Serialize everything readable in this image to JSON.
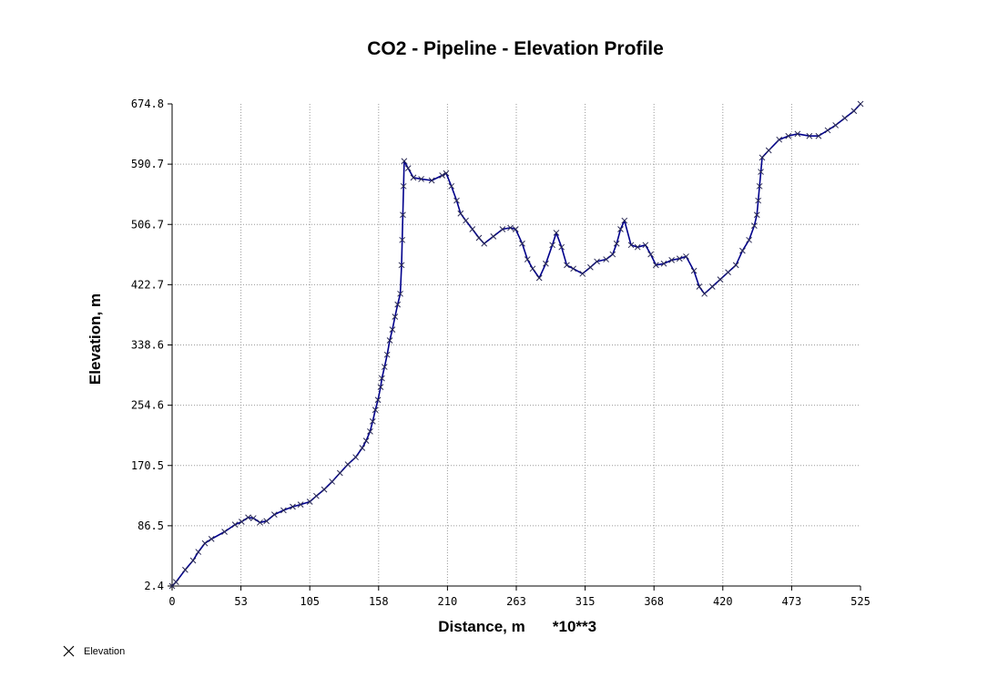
{
  "chart_data": {
    "type": "line",
    "title": "CO2 - Pipeline - Elevation Profile",
    "xlabel": "Distance, m",
    "x_multiplier": "*10**3",
    "ylabel": "Elevation, m",
    "xlim": [
      0,
      525
    ],
    "ylim": [
      2.4,
      674.8
    ],
    "x_ticks": [
      "0",
      "53",
      "105",
      "158",
      "210",
      "263",
      "315",
      "368",
      "420",
      "473",
      "525"
    ],
    "y_ticks": [
      "674.8",
      "590.7",
      "506.7",
      "422.7",
      "338.6",
      "254.6",
      "170.5",
      "86.5",
      "2.4"
    ],
    "grid": true,
    "legend_position": "bottom-left",
    "line_color": "#00008b",
    "series": [
      {
        "name": "Elevation",
        "points": [
          [
            0,
            2.4
          ],
          [
            3,
            8
          ],
          [
            10,
            25
          ],
          [
            16,
            38
          ],
          [
            20,
            50
          ],
          [
            25,
            62
          ],
          [
            30,
            68
          ],
          [
            40,
            78
          ],
          [
            48,
            88
          ],
          [
            53,
            92
          ],
          [
            58,
            98
          ],
          [
            62,
            97
          ],
          [
            67,
            91
          ],
          [
            72,
            93
          ],
          [
            78,
            102
          ],
          [
            85,
            108
          ],
          [
            92,
            113
          ],
          [
            98,
            116
          ],
          [
            105,
            120
          ],
          [
            110,
            128
          ],
          [
            116,
            137
          ],
          [
            122,
            148
          ],
          [
            128,
            160
          ],
          [
            134,
            172
          ],
          [
            140,
            182
          ],
          [
            145,
            195
          ],
          [
            148,
            205
          ],
          [
            151,
            218
          ],
          [
            153,
            232
          ],
          [
            155,
            248
          ],
          [
            157,
            262
          ],
          [
            159,
            280
          ],
          [
            160,
            292
          ],
          [
            162,
            308
          ],
          [
            164,
            325
          ],
          [
            166,
            345
          ],
          [
            168,
            360
          ],
          [
            170,
            378
          ],
          [
            172,
            395
          ],
          [
            174,
            410
          ],
          [
            175,
            450
          ],
          [
            175.5,
            485
          ],
          [
            176,
            520
          ],
          [
            176.5,
            560
          ],
          [
            177,
            595
          ],
          [
            180,
            585
          ],
          [
            184,
            572
          ],
          [
            190,
            570
          ],
          [
            198,
            568
          ],
          [
            206,
            575
          ],
          [
            209,
            578
          ],
          [
            213,
            560
          ],
          [
            217,
            540
          ],
          [
            220,
            522
          ],
          [
            224,
            512
          ],
          [
            229,
            500
          ],
          [
            234,
            488
          ],
          [
            238,
            480
          ],
          [
            245,
            490
          ],
          [
            252,
            500
          ],
          [
            258,
            502
          ],
          [
            262,
            500
          ],
          [
            267,
            480
          ],
          [
            271,
            458
          ],
          [
            275,
            445
          ],
          [
            280,
            432
          ],
          [
            285,
            452
          ],
          [
            290,
            478
          ],
          [
            293,
            495
          ],
          [
            297,
            475
          ],
          [
            301,
            450
          ],
          [
            306,
            445
          ],
          [
            313,
            438
          ],
          [
            319,
            447
          ],
          [
            324,
            455
          ],
          [
            331,
            458
          ],
          [
            336,
            465
          ],
          [
            339,
            480
          ],
          [
            342,
            500
          ],
          [
            345,
            512
          ],
          [
            350,
            478
          ],
          [
            355,
            475
          ],
          [
            361,
            478
          ],
          [
            365,
            465
          ],
          [
            369,
            450
          ],
          [
            375,
            452
          ],
          [
            381,
            457
          ],
          [
            387,
            459
          ],
          [
            392,
            462
          ],
          [
            398,
            442
          ],
          [
            402,
            420
          ],
          [
            406,
            410
          ],
          [
            412,
            420
          ],
          [
            418,
            430
          ],
          [
            424,
            440
          ],
          [
            430,
            450
          ],
          [
            435,
            470
          ],
          [
            440,
            485
          ],
          [
            444,
            505
          ],
          [
            446,
            520
          ],
          [
            447,
            540
          ],
          [
            448,
            560
          ],
          [
            449,
            580
          ],
          [
            450,
            600
          ],
          [
            455,
            610
          ],
          [
            463,
            625
          ],
          [
            470,
            630
          ],
          [
            477,
            633
          ],
          [
            486,
            630
          ],
          [
            493,
            630
          ],
          [
            500,
            638
          ],
          [
            506,
            645
          ],
          [
            513,
            655
          ],
          [
            520,
            665
          ],
          [
            525,
            674.8
          ]
        ]
      }
    ]
  },
  "legend": {
    "items": [
      {
        "label": "Elevation",
        "marker": "x-icon"
      }
    ]
  }
}
